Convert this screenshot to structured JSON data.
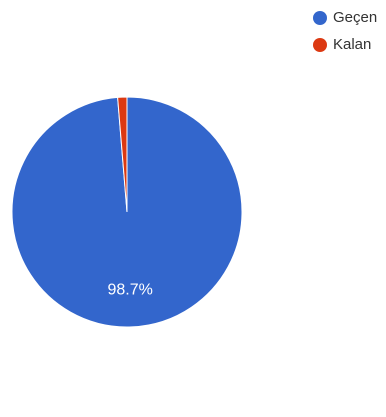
{
  "chart_data": {
    "type": "pie",
    "series": [
      {
        "name": "Geçen",
        "value": 98.7,
        "label": "98.7%",
        "color": "#3366cc"
      },
      {
        "name": "Kalan",
        "value": 1.3,
        "label": "",
        "color": "#dc3912"
      }
    ],
    "legend_position": "top-right",
    "start_angle": "12 o'clock",
    "direction": "clockwise"
  }
}
